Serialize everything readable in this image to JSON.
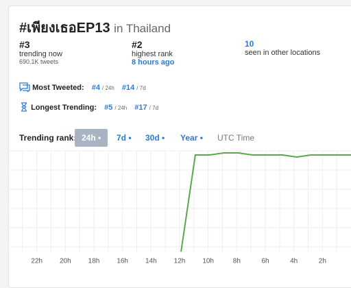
{
  "header": {
    "title": "#เพียงเธอEP13",
    "location": "in Thailand"
  },
  "stats": [
    {
      "value": "#3",
      "label": "trending now",
      "detail": "690.1K tweets"
    },
    {
      "value": "#2",
      "label": "highest rank",
      "detail": "8 hours ago"
    },
    {
      "value": "10",
      "label": "seen in other locations"
    }
  ],
  "most_tweeted": {
    "label": "Most Tweeted:",
    "items": [
      {
        "rank": "#4",
        "period": "/ 24h"
      },
      {
        "rank": "#14",
        "period": "/ 7d"
      }
    ]
  },
  "longest_trending": {
    "label": "Longest Trending:",
    "items": [
      {
        "rank": "#5",
        "period": "/ 24h"
      },
      {
        "rank": "#17",
        "period": "/ 7d"
      }
    ]
  },
  "tabs": {
    "label": "Trending rank:",
    "options": [
      "24h •",
      "7d •",
      "30d •",
      "Year •"
    ],
    "selected": 0,
    "utc": "UTC Time"
  },
  "chart_data": {
    "type": "line",
    "color": "#5aa84b",
    "x": [
      11.9,
      10.9,
      9.9,
      8.9,
      7.9,
      6.9,
      5.9,
      4.8,
      3.8,
      2.8,
      1.8,
      0
    ],
    "values": [
      50,
      3,
      3,
      2,
      2,
      3,
      3,
      3,
      4,
      3,
      3,
      3
    ],
    "xlim": [
      24,
      0
    ],
    "ylim": [
      1,
      50
    ],
    "y_inverted": true,
    "grid": true,
    "xticks": [
      {
        "value": 22,
        "label": "22h"
      },
      {
        "value": 20,
        "label": "20h"
      },
      {
        "value": 18,
        "label": "18h"
      },
      {
        "value": 16,
        "label": "16h"
      },
      {
        "value": 14,
        "label": "14h"
      },
      {
        "value": 12,
        "label": "12h"
      },
      {
        "value": 10,
        "label": "10h"
      },
      {
        "value": 8,
        "label": "8h"
      },
      {
        "value": 6,
        "label": "6h"
      },
      {
        "value": 4,
        "label": "4h"
      },
      {
        "value": 2,
        "label": "2h"
      }
    ]
  }
}
